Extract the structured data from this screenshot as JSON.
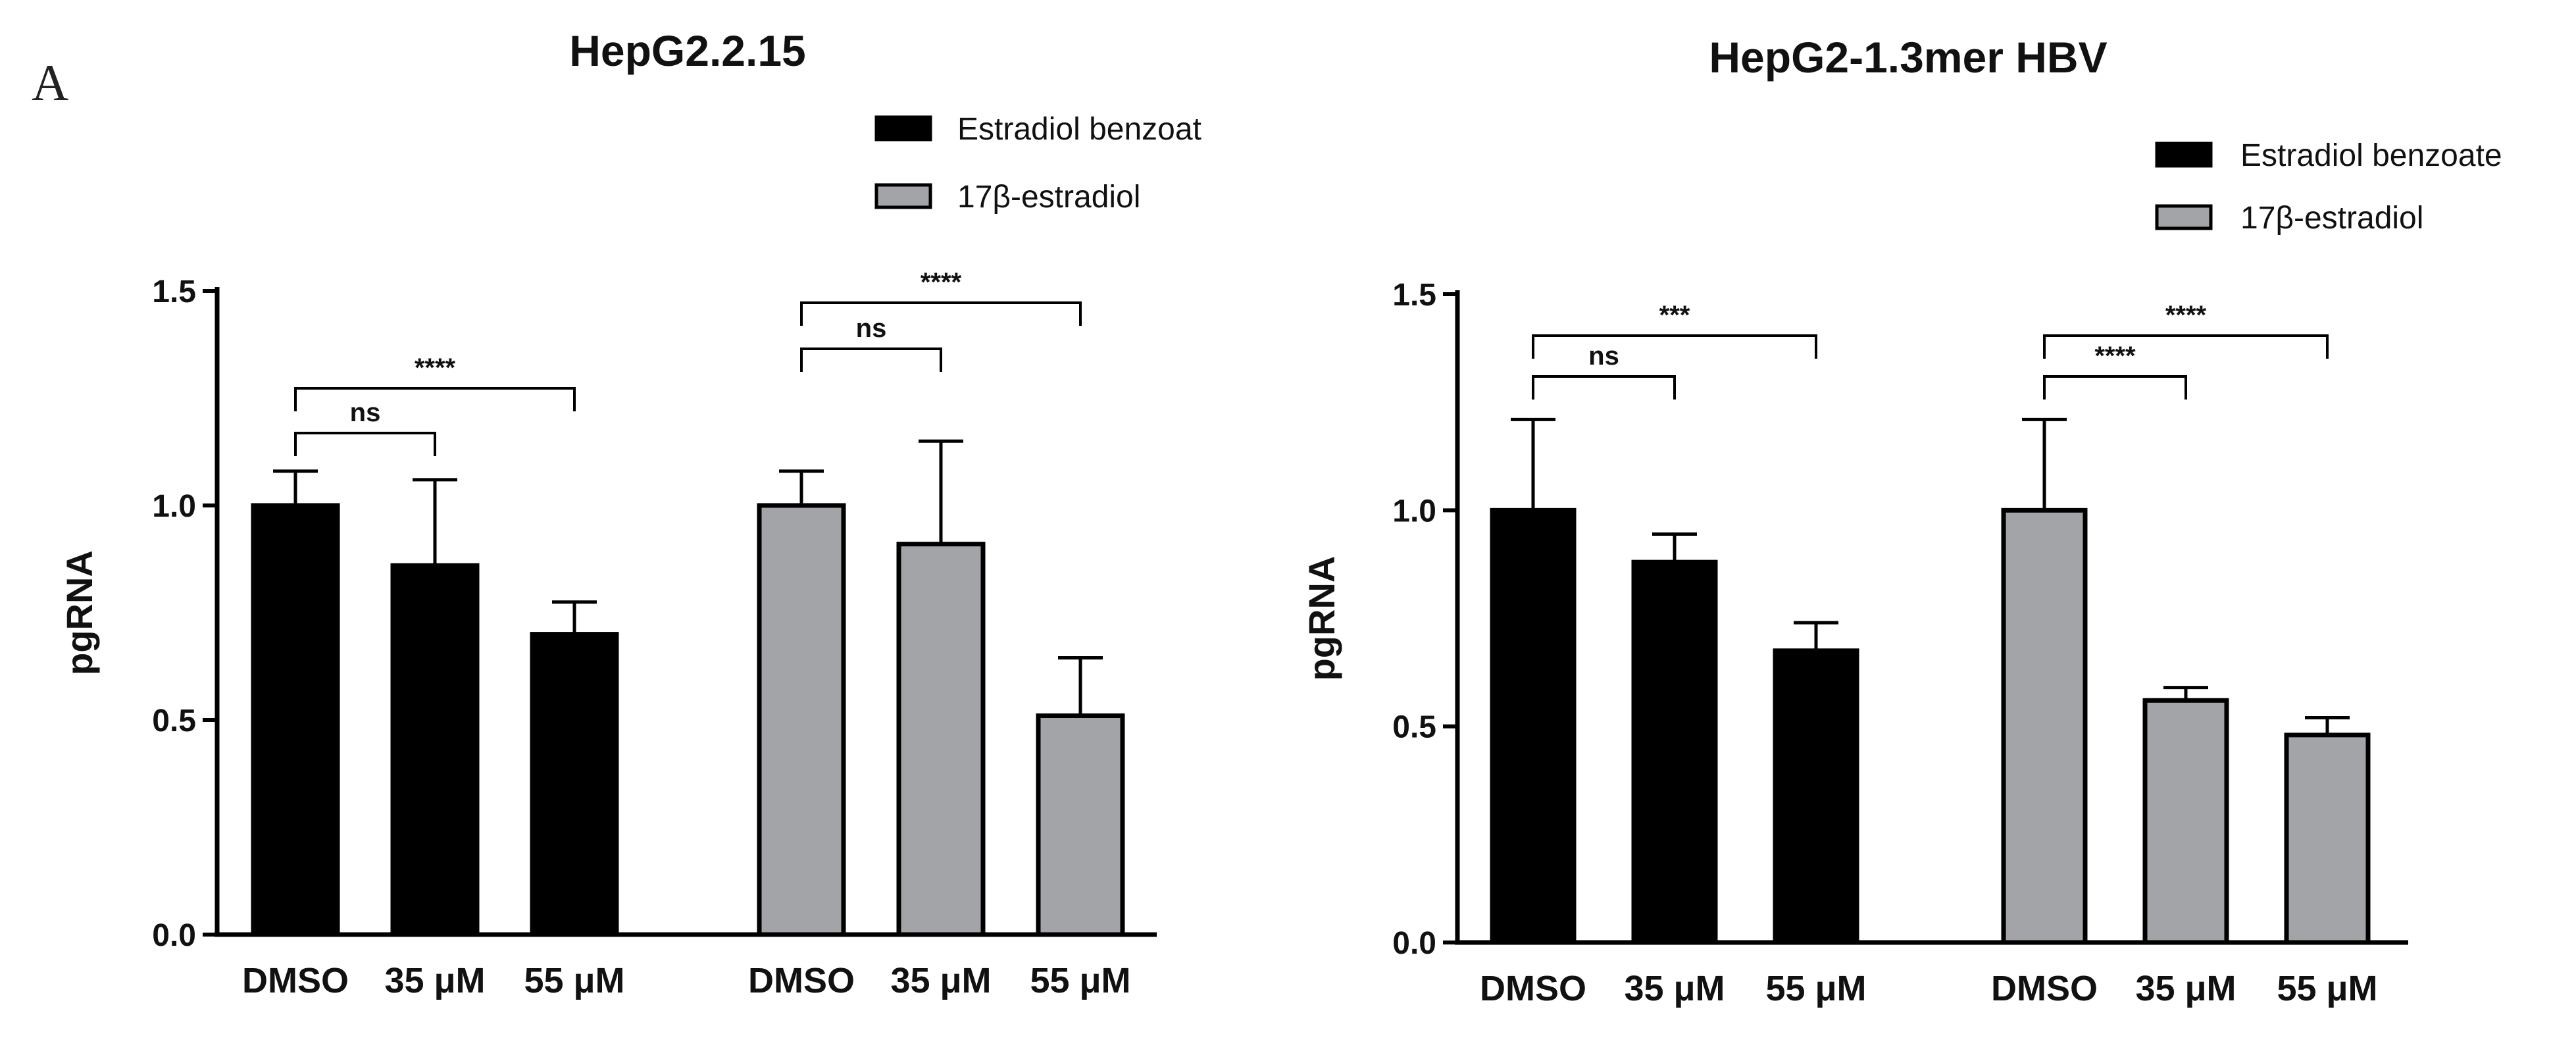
{
  "panel_label": "A",
  "chart_data": [
    {
      "type": "bar",
      "title": "HepG2.2.15",
      "xlabel": "",
      "ylabel": "pgRNA",
      "ylim": [
        0,
        1.5
      ],
      "yticks": [
        "0.0",
        "0.5",
        "1.0",
        "1.5"
      ],
      "categories": [
        "DMSO",
        "35 μM",
        "55 μM"
      ],
      "legend": {
        "placement": "top-right",
        "entries": [
          "Estradiol benzoat",
          "17β-estradiol"
        ]
      },
      "colors": {
        "Estradiol benzoat": "#000000",
        "17β-estradiol": "#a3a4a8"
      },
      "series": [
        {
          "name": "Estradiol benzoat",
          "values": [
            1.0,
            0.86,
            0.7
          ],
          "errors": [
            0.08,
            0.2,
            0.075
          ]
        },
        {
          "name": "17β-estradiol",
          "values": [
            1.0,
            0.91,
            0.51
          ],
          "errors": [
            0.08,
            0.24,
            0.135
          ]
        }
      ],
      "significance": [
        {
          "series": 0,
          "from": 0,
          "to": 1,
          "label": "ns"
        },
        {
          "series": 0,
          "from": 0,
          "to": 2,
          "label": "****"
        },
        {
          "series": 1,
          "from": 0,
          "to": 1,
          "label": "ns"
        },
        {
          "series": 1,
          "from": 0,
          "to": 2,
          "label": "****"
        }
      ]
    },
    {
      "type": "bar",
      "title": "HepG2-1.3mer HBV",
      "xlabel": "",
      "ylabel": "pgRNA",
      "ylim": [
        0,
        1.5
      ],
      "yticks": [
        "0.0",
        "0.5",
        "1.0",
        "1.5"
      ],
      "categories": [
        "DMSO",
        "35 μM",
        "55 μM"
      ],
      "legend": {
        "placement": "top-right",
        "entries": [
          "Estradiol benzoate",
          "17β-estradiol"
        ]
      },
      "colors": {
        "Estradiol benzoate": "#000000",
        "17β-estradiol": "#a3a4a8"
      },
      "series": [
        {
          "name": "Estradiol benzoate",
          "values": [
            1.0,
            0.88,
            0.675
          ],
          "errors": [
            0.21,
            0.065,
            0.065
          ]
        },
        {
          "name": "17β-estradiol",
          "values": [
            1.0,
            0.56,
            0.48
          ],
          "errors": [
            0.21,
            0.03,
            0.04
          ]
        }
      ],
      "significance": [
        {
          "series": 0,
          "from": 0,
          "to": 1,
          "label": "ns"
        },
        {
          "series": 0,
          "from": 0,
          "to": 2,
          "label": "***"
        },
        {
          "series": 1,
          "from": 0,
          "to": 1,
          "label": "****"
        },
        {
          "series": 1,
          "from": 0,
          "to": 2,
          "label": "****"
        }
      ]
    }
  ]
}
